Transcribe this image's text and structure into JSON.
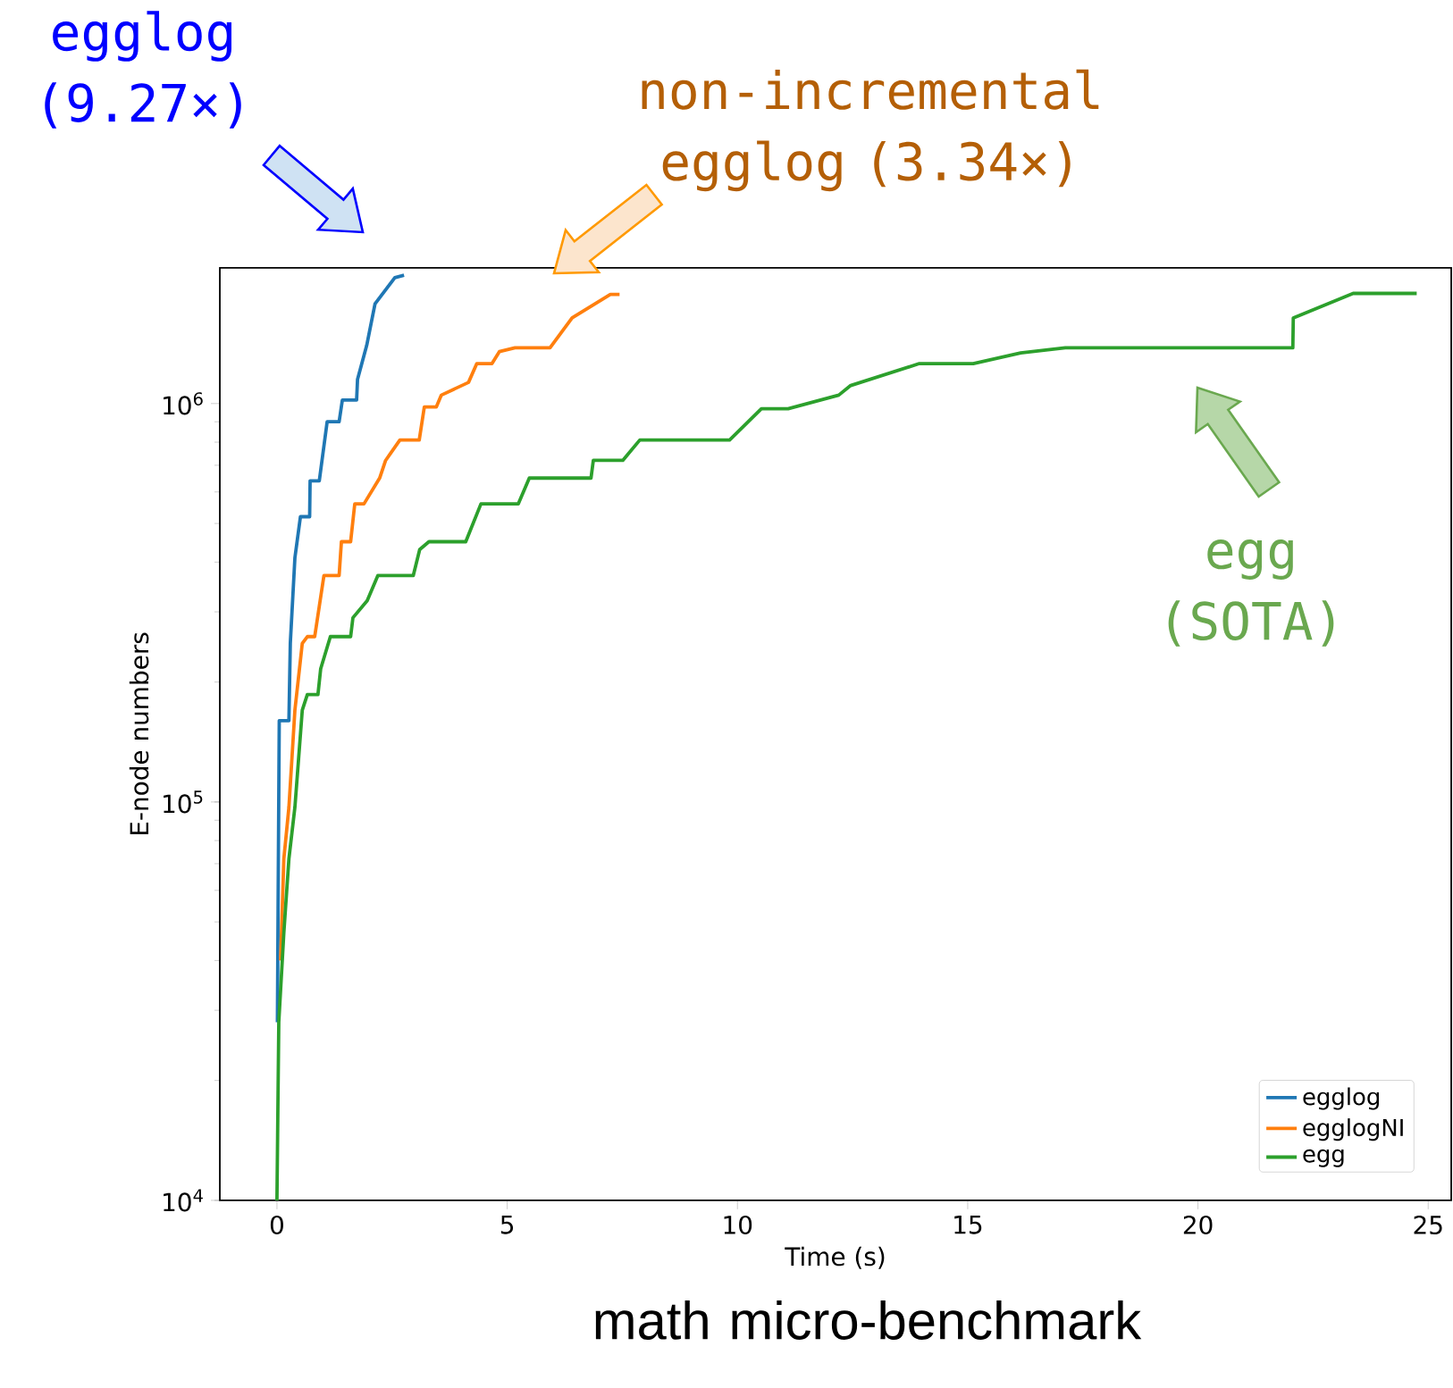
{
  "chart_data": {
    "type": "line",
    "xlabel": "Time (s)",
    "ylabel": "E-node numbers",
    "xlim": [
      -1.24,
      25.5
    ],
    "ylim": [
      10000,
      2190000
    ],
    "log": "y",
    "xticks": [
      0,
      5,
      10,
      15,
      20,
      25
    ],
    "yticks": [
      {
        "value": 10000,
        "label": "10$^{4}$"
      },
      {
        "value": 100000,
        "label": "10$^{5}$"
      },
      {
        "value": 1000000,
        "label": "10$^{6}$"
      }
    ],
    "legend": "bottom right",
    "marker": "none",
    "line_style": "solid",
    "series": [
      {
        "name": "egglog",
        "color": "#1f77b4",
        "x": [
          0.01,
          0.03,
          0.05,
          0.26,
          0.29,
          0.39,
          0.51,
          0.71,
          0.72,
          0.92,
          1.09,
          1.35,
          1.42,
          1.73,
          1.75,
          1.89,
          1.95,
          2.13,
          2.56,
          2.76
        ],
        "values": [
          28000,
          69000,
          160000,
          160000,
          250000,
          410000,
          520000,
          520000,
          640000,
          640000,
          900000,
          900000,
          1020000,
          1020000,
          1150000,
          1320000,
          1400000,
          1780000,
          2070000,
          2100000
        ]
      },
      {
        "name": "egglogNI",
        "color": "#ff7f0e",
        "x": [
          0.08,
          0.15,
          0.26,
          0.39,
          0.55,
          0.66,
          0.82,
          1.02,
          1.35,
          1.4,
          1.6,
          1.69,
          1.89,
          2.23,
          2.36,
          2.67,
          3.09,
          3.2,
          3.46,
          3.57,
          4.16,
          4.34,
          4.67,
          4.83,
          5.17,
          5.93,
          6.41,
          7.24,
          7.44
        ],
        "values": [
          40000,
          72000,
          97000,
          170000,
          250000,
          260000,
          260000,
          370000,
          370000,
          450000,
          450000,
          560000,
          560000,
          650000,
          720000,
          810000,
          810000,
          980000,
          980000,
          1050000,
          1130000,
          1260000,
          1260000,
          1350000,
          1380000,
          1380000,
          1640000,
          1880000,
          1880000
        ]
      },
      {
        "name": "egg",
        "color": "#2ca02c",
        "x": [
          0,
          0.04,
          0.15,
          0.26,
          0.39,
          0.55,
          0.66,
          0.89,
          0.95,
          1.16,
          1.6,
          1.65,
          1.96,
          2.19,
          2.96,
          3.1,
          3.3,
          4.1,
          4.43,
          5.24,
          5.48,
          6.82,
          6.87,
          7.51,
          7.88,
          9.83,
          10.52,
          11.1,
          12.2,
          12.46,
          13.95,
          15.12,
          16.15,
          17.12,
          22.06,
          22.07,
          23.37,
          24.75
        ],
        "values": [
          10000,
          28000,
          47000,
          72000,
          97000,
          170000,
          186000,
          186000,
          216000,
          260000,
          260000,
          290000,
          320000,
          370000,
          370000,
          430000,
          450000,
          450000,
          560000,
          560000,
          650000,
          650000,
          720000,
          720000,
          810000,
          810000,
          970000,
          970000,
          1050000,
          1110000,
          1260000,
          1260000,
          1340000,
          1380000,
          1380000,
          1640000,
          1890000,
          1890000
        ]
      }
    ],
    "annotations": [
      "egglog (9.27×)",
      "non-incremental egglog (3.34×)",
      "egg (SOTA)",
      "math micro-benchmark"
    ]
  }
}
